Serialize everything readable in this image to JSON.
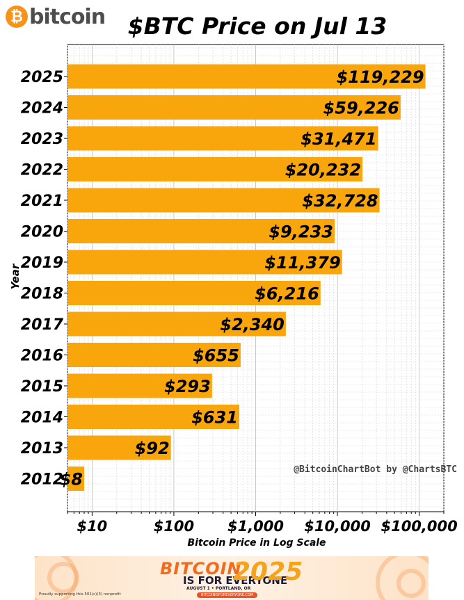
{
  "brand": {
    "logo_glyph": "₿",
    "logo_text": "bitcoin"
  },
  "chart_data": {
    "type": "bar",
    "orientation": "horizontal",
    "title": "$BTC Price on Jul 13",
    "xlabel": "Bitcoin Price in Log Scale",
    "ylabel": "Year",
    "xscale": "log",
    "xlim": [
      5,
      200000
    ],
    "x_ticks": [
      10,
      100,
      1000,
      10000,
      100000
    ],
    "x_tick_labels": [
      "$10",
      "$100",
      "$1,000",
      "$10,000",
      "$100,000"
    ],
    "categories": [
      "2025",
      "2024",
      "2023",
      "2022",
      "2021",
      "2020",
      "2019",
      "2018",
      "2017",
      "2016",
      "2015",
      "2014",
      "2013",
      "2012"
    ],
    "values": [
      119229,
      59226,
      31471,
      20232,
      32728,
      9233,
      11379,
      6216,
      2340,
      655,
      293,
      631,
      92,
      8
    ],
    "value_labels": [
      "$119,229",
      "$59,226",
      "$31,471",
      "$20,232",
      "$32,728",
      "$9,233",
      "$11,379",
      "$6,216",
      "$2,340",
      "$655",
      "$293",
      "$631",
      "$92",
      "$8"
    ],
    "bar_color": "#f9a60c",
    "grid": true,
    "watermark": "@BitcoinChartBot by @ChartsBTC"
  },
  "banner": {
    "line1": "BITCOIN",
    "line2": "IS FOR EVERYONE",
    "year": "2025",
    "date_place": "AUGUST 1 • PORTLAND, OR",
    "url": "BITCOINISFOREVERYONE.COM",
    "note": "Proudly supporting this 501(c)(3) nonprofit"
  }
}
